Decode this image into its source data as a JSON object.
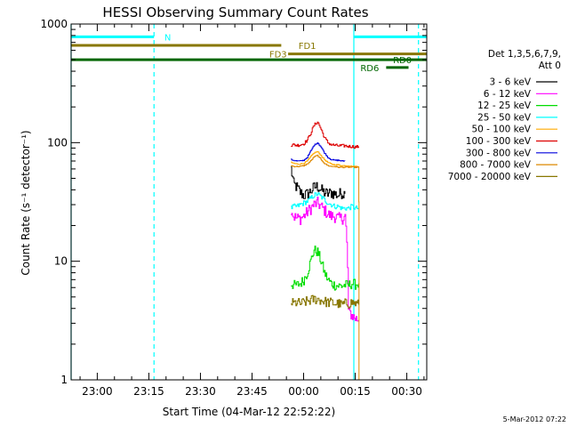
{
  "chart_data": {
    "type": "line",
    "title": "HESSI Observing Summary Count Rates",
    "xlabel": "Start Time (04-Mar-12 22:52:22)",
    "ylabel": "Count Rate (s⁻¹ detector⁻¹)",
    "y_scale": "log",
    "ylim": [
      1,
      1000
    ],
    "y_ticks": [
      "1",
      "10",
      "100",
      "1000"
    ],
    "x_range_minutes": [
      -67.6,
      35.8
    ],
    "x_ticks": [
      {
        "label": "23:00",
        "minutes": -60
      },
      {
        "label": "23:15",
        "minutes": -45
      },
      {
        "label": "23:30",
        "minutes": -30
      },
      {
        "label": "23:45",
        "minutes": -15
      },
      {
        "label": "00:00",
        "minutes": 0
      },
      {
        "label": "00:15",
        "minutes": 15
      },
      {
        "label": "00:30",
        "minutes": 30
      }
    ],
    "legend": {
      "header": "Det 1,3,5,6,7,9,",
      "subheader": "Att 0",
      "placement": "right"
    },
    "series": [
      {
        "name": "3 - 6 keV",
        "color": "#000000",
        "x": [
          -3.7,
          -3,
          -2,
          -1,
          0,
          1,
          2,
          3,
          4,
          5,
          6,
          7,
          8,
          9,
          10,
          11,
          12
        ],
        "y": [
          60,
          45,
          42,
          38,
          36,
          37,
          39,
          42,
          43,
          40,
          38,
          37,
          38,
          37,
          36,
          38,
          37
        ],
        "noise": 0.12
      },
      {
        "name": "6 - 12 keV",
        "color": "#ff00ff",
        "x": [
          -3.7,
          -3,
          -2,
          -1,
          0,
          1,
          2,
          3,
          4,
          5,
          6,
          7,
          8,
          9,
          10,
          11,
          12,
          13,
          14,
          15,
          16
        ],
        "y": [
          28,
          24,
          23,
          23,
          24,
          26,
          28,
          30,
          31,
          29,
          27,
          25,
          24,
          24,
          23,
          23,
          24,
          3.8,
          3.5,
          3.3,
          3.2
        ],
        "noise": 0.12
      },
      {
        "name": "12 - 25 keV",
        "color": "#00dd00",
        "x": [
          -3.7,
          -3,
          -2,
          -1,
          0,
          1,
          2,
          3,
          4,
          5,
          6,
          7,
          8,
          9,
          10,
          11,
          12,
          13,
          14,
          15,
          16
        ],
        "y": [
          6.5,
          6.3,
          6.3,
          6.5,
          7,
          8,
          10,
          12.5,
          12,
          10,
          8,
          7,
          6.5,
          6.3,
          6.2,
          6.2,
          6.3,
          6.3,
          6.5,
          6.4,
          6.5
        ],
        "noise": 0.1
      },
      {
        "name": "25 - 50 keV",
        "color": "#00ffff",
        "x": [
          -3.7,
          -3,
          -2,
          -1,
          0,
          1,
          2,
          3,
          4,
          5,
          6,
          7,
          8,
          9,
          10,
          11,
          12,
          13,
          14,
          15,
          16
        ],
        "y": [
          28,
          29,
          29,
          30,
          31,
          32,
          34,
          36,
          37,
          35,
          33,
          31,
          30,
          29,
          29,
          28,
          28,
          28,
          29,
          28,
          28
        ],
        "noise": 0.05
      },
      {
        "name": "50 - 100 keV",
        "color": "#ffaa00",
        "x": [
          -3.7,
          -3,
          -2,
          -1,
          0,
          1,
          2,
          3,
          4,
          5,
          6,
          7,
          8,
          9,
          10,
          11,
          12,
          13,
          14,
          15,
          16
        ],
        "y": [
          68,
          67,
          66,
          66,
          67,
          70,
          76,
          82,
          84,
          78,
          72,
          68,
          66,
          65,
          65,
          64,
          64,
          64,
          63,
          63,
          63
        ],
        "noise": 0.01
      },
      {
        "name": "100 - 300 keV",
        "color": "#dd0000",
        "x": [
          -3.7,
          -3,
          -2,
          -1,
          0,
          1,
          2,
          3,
          4,
          5,
          6,
          7,
          8,
          9,
          10,
          11,
          12,
          13,
          14,
          15,
          16
        ],
        "y": [
          95,
          96,
          95,
          96,
          98,
          105,
          120,
          140,
          150,
          130,
          110,
          100,
          96,
          95,
          94,
          94,
          94,
          93,
          93,
          92,
          93
        ],
        "noise": 0.03
      },
      {
        "name": "300 - 800 keV",
        "color": "#0000dd",
        "x": [
          -3.7,
          -3,
          -2,
          -1,
          0,
          1,
          2,
          3,
          4,
          5,
          6,
          7,
          8,
          9,
          10,
          11,
          12
        ],
        "y": [
          72,
          71,
          70,
          70,
          71,
          75,
          85,
          95,
          100,
          92,
          82,
          75,
          72,
          71,
          71,
          70,
          70
        ],
        "noise": 0.01
      },
      {
        "name": "800 - 7000 keV",
        "color": "#dd8800",
        "x": [
          -3.7,
          -3,
          -2,
          -1,
          0,
          1,
          2,
          3,
          4,
          5,
          6,
          7,
          8,
          9,
          10,
          11,
          12,
          13,
          14,
          15,
          16,
          16.1
        ],
        "y": [
          64,
          63,
          63,
          63,
          64,
          66,
          70,
          76,
          78,
          72,
          67,
          64,
          63,
          63,
          62,
          62,
          62,
          62,
          62,
          62,
          62,
          1
        ],
        "noise": 0.01
      },
      {
        "name": "7000 - 20000 keV",
        "color": "#887700",
        "x": [
          -3.7,
          -3,
          -2,
          -1,
          0,
          1,
          2,
          3,
          4,
          5,
          6,
          7,
          8,
          9,
          10,
          11,
          12,
          13,
          14,
          15,
          16
        ],
        "y": [
          4.5,
          4.4,
          4.5,
          4.4,
          4.5,
          4.6,
          4.7,
          4.8,
          4.8,
          4.7,
          4.6,
          4.5,
          4.5,
          4.4,
          4.4,
          4.3,
          4.4,
          4.4,
          4.5,
          4.4,
          4.3
        ],
        "noise": 0.1
      }
    ],
    "flag_bars": [
      {
        "label": "N",
        "color": "#00ffff",
        "start": -67.6,
        "end": -43.5,
        "level": 780,
        "label_at": -40.5
      },
      {
        "label": "N",
        "color": "#00ffff",
        "start": 14.6,
        "end": 35.8,
        "level": 780,
        "label_at": null
      },
      {
        "label": "FD1",
        "color": "#887700",
        "start": -67.6,
        "end": -6.5,
        "level": 660,
        "label_at": -1.5
      },
      {
        "label": "FD3",
        "color": "#887700",
        "start": -4.5,
        "end": 35.8,
        "level": 560,
        "label_at": -10
      },
      {
        "label": "RD0",
        "color": "#006600",
        "start": -67.6,
        "end": 35.8,
        "level": 500,
        "label_at": 26
      },
      {
        "label": "RD6",
        "color": "#006600",
        "start": 24,
        "end": 30.5,
        "level": 430,
        "label_at": 16.5
      }
    ],
    "vlines": [
      {
        "minutes": -67.6,
        "color": "#00ffff",
        "style": "solid"
      },
      {
        "minutes": -43.5,
        "color": "#00ffff",
        "style": "dashed"
      },
      {
        "minutes": 14.6,
        "color": "#00ffff",
        "style": "solid"
      },
      {
        "minutes": 33.4,
        "color": "#00ffff",
        "style": "dashed"
      }
    ],
    "timestamp": "5-Mar-2012 07:22"
  }
}
